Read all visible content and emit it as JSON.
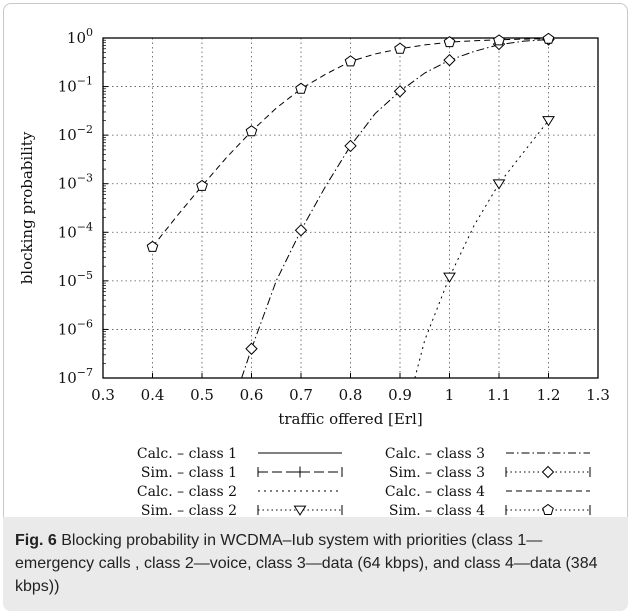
{
  "figure": {
    "caption_label": "Fig. 6",
    "caption_text": "Blocking probability in WCDMA–Iub system with priorities (class 1—emergency calls , class 2—voice, class 3—data (64 kbps), and class 4—data (384 kbps))"
  },
  "chart_data": {
    "type": "line",
    "xlabel": "traffic offered [Erl]",
    "ylabel": "blocking probability",
    "x_scale": "linear",
    "y_scale": "log",
    "xlim": [
      0.3,
      1.3
    ],
    "ylim": [
      1e-07,
      1
    ],
    "grid": true,
    "legend_placement": "bottom",
    "x_ticks": [
      "0.3",
      "0.4",
      "0.5",
      "0.6",
      "0.7",
      "0.8",
      "0.9",
      "1",
      "1.1",
      "1.2",
      "1.3"
    ],
    "y_ticks": [
      "10^-7",
      "10^-6",
      "10^-5",
      "10^-4",
      "10^-3",
      "10^-2",
      "10^-1",
      "10^0"
    ],
    "series": [
      {
        "name": "Calc. – class 1",
        "kind": "calc",
        "dash": "solid",
        "marker": "none",
        "x": [],
        "y": []
      },
      {
        "name": "Sim. – class 1",
        "kind": "sim",
        "dash": "solid",
        "marker": "plus",
        "x": [],
        "y": []
      },
      {
        "name": "Calc. – class 2",
        "kind": "calc",
        "dash": "short-dot",
        "marker": "none",
        "x": [
          0.93,
          0.95,
          1.0,
          1.05,
          1.1,
          1.15,
          1.2
        ],
        "y": [
          1e-07,
          6e-07,
          1.2e-05,
          0.00014,
          0.001,
          0.0045,
          0.02
        ]
      },
      {
        "name": "Sim. – class 2",
        "kind": "sim",
        "dash": "dot",
        "marker": "triangle-down",
        "x": [
          1.0,
          1.1,
          1.2
        ],
        "y": [
          1.2e-05,
          0.001,
          0.02
        ]
      },
      {
        "name": "Calc. – class 3",
        "kind": "calc",
        "dash": "dash-dot",
        "marker": "none",
        "x": [
          0.58,
          0.6,
          0.65,
          0.7,
          0.75,
          0.8,
          0.85,
          0.9,
          0.95,
          1.0,
          1.05,
          1.1,
          1.15,
          1.2
        ],
        "y": [
          1e-07,
          4e-07,
          1e-05,
          0.00011,
          0.0009,
          0.006,
          0.028,
          0.08,
          0.19,
          0.35,
          0.53,
          0.73,
          0.86,
          0.93
        ]
      },
      {
        "name": "Sim. – class 3",
        "kind": "sim",
        "dash": "dot",
        "marker": "diamond",
        "x": [
          0.6,
          0.7,
          0.8,
          0.9,
          1.0,
          1.1,
          1.2
        ],
        "y": [
          4e-07,
          0.00011,
          0.006,
          0.08,
          0.35,
          0.75,
          0.93
        ]
      },
      {
        "name": "Calc. – class 4",
        "kind": "calc",
        "dash": "dash",
        "marker": "none",
        "x": [
          0.4,
          0.45,
          0.5,
          0.55,
          0.6,
          0.65,
          0.7,
          0.75,
          0.8,
          0.85,
          0.9,
          0.95,
          1.0,
          1.05,
          1.1,
          1.15,
          1.2
        ],
        "y": [
          5e-05,
          0.00022,
          0.0009,
          0.0035,
          0.012,
          0.036,
          0.09,
          0.18,
          0.33,
          0.47,
          0.6,
          0.72,
          0.82,
          0.88,
          0.92,
          0.95,
          0.97
        ]
      },
      {
        "name": "Sim. – class 4",
        "kind": "sim",
        "dash": "dot",
        "marker": "pentagon",
        "x": [
          0.4,
          0.5,
          0.6,
          0.7,
          0.8,
          0.9,
          1.0,
          1.1,
          1.2
        ],
        "y": [
          5e-05,
          0.0009,
          0.012,
          0.09,
          0.33,
          0.6,
          0.82,
          0.89,
          0.96
        ]
      }
    ]
  },
  "legend": {
    "entries": [
      {
        "label": "Calc. – class 1",
        "style": "solid",
        "marker": "none"
      },
      {
        "label": "Sim. – class 1",
        "style": "solid-ticks",
        "marker": "plus"
      },
      {
        "label": "Calc. – class 2",
        "style": "short-dot",
        "marker": "none"
      },
      {
        "label": "Sim. – class 2",
        "style": "dot-ticks",
        "marker": "triangle-down"
      },
      {
        "label": "Calc. – class 3",
        "style": "dash-dot",
        "marker": "none"
      },
      {
        "label": "Sim. – class 3",
        "style": "dot-ticks",
        "marker": "diamond"
      },
      {
        "label": "Calc. – class 4",
        "style": "dash",
        "marker": "none"
      },
      {
        "label": "Sim. – class 4",
        "style": "dot-ticks",
        "marker": "pentagon"
      }
    ]
  }
}
